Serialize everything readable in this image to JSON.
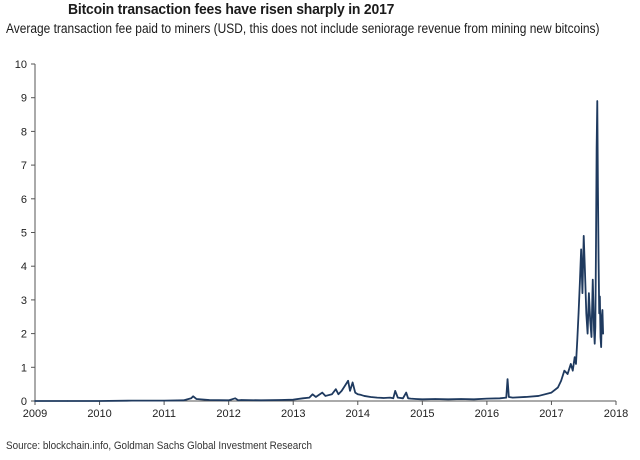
{
  "chart_data": {
    "type": "line",
    "title": "Bitcoin transaction fees have risen sharply in 2017",
    "subtitle": "Average transaction fee paid to miners (USD, this does not include seniorage revenue from mining new bitcoins)",
    "source": "Source: blockchain.info, Goldman Sachs Global Investment Research",
    "xlabel": "",
    "ylabel": "",
    "xlim": [
      2009,
      2018
    ],
    "ylim": [
      0,
      10
    ],
    "x_ticks": [
      "2009",
      "2010",
      "2011",
      "2012",
      "2013",
      "2014",
      "2015",
      "2016",
      "2017",
      "2018"
    ],
    "y_ticks": [
      "0",
      "1",
      "2",
      "3",
      "4",
      "5",
      "6",
      "7",
      "8",
      "9",
      "10"
    ],
    "grid": false,
    "series": [
      {
        "name": "Average transaction fee (USD)",
        "color": "#1f3a5f",
        "x": [
          2009.0,
          2009.5,
          2010.0,
          2010.5,
          2011.0,
          2011.3,
          2011.42,
          2011.45,
          2011.5,
          2011.7,
          2012.0,
          2012.1,
          2012.15,
          2012.2,
          2012.5,
          2012.8,
          2013.0,
          2013.15,
          2013.25,
          2013.3,
          2013.35,
          2013.45,
          2013.5,
          2013.6,
          2013.66,
          2013.7,
          2013.75,
          2013.8,
          2013.85,
          2013.88,
          2013.92,
          2013.96,
          2014.0,
          2014.05,
          2014.1,
          2014.2,
          2014.3,
          2014.4,
          2014.5,
          2014.55,
          2014.58,
          2014.62,
          2014.7,
          2014.75,
          2014.78,
          2014.82,
          2014.9,
          2015.0,
          2015.2,
          2015.4,
          2015.6,
          2015.8,
          2016.0,
          2016.2,
          2016.3,
          2016.32,
          2016.34,
          2016.4,
          2016.6,
          2016.8,
          2017.0,
          2017.1,
          2017.15,
          2017.2,
          2017.25,
          2017.3,
          2017.33,
          2017.36,
          2017.38,
          2017.4,
          2017.42,
          2017.44,
          2017.46,
          2017.48,
          2017.5,
          2017.52,
          2017.54,
          2017.56,
          2017.58,
          2017.6,
          2017.62,
          2017.64,
          2017.66,
          2017.67,
          2017.68,
          2017.69,
          2017.7,
          2017.71,
          2017.72,
          2017.73,
          2017.74,
          2017.75,
          2017.76,
          2017.77,
          2017.78,
          2017.79,
          2017.8
        ],
        "values": [
          0.0,
          0.0,
          0.0,
          0.01,
          0.01,
          0.02,
          0.08,
          0.14,
          0.06,
          0.03,
          0.02,
          0.08,
          0.02,
          0.03,
          0.02,
          0.03,
          0.04,
          0.08,
          0.1,
          0.2,
          0.12,
          0.25,
          0.15,
          0.2,
          0.35,
          0.2,
          0.3,
          0.45,
          0.6,
          0.3,
          0.55,
          0.25,
          0.2,
          0.18,
          0.15,
          0.12,
          0.1,
          0.09,
          0.1,
          0.08,
          0.3,
          0.1,
          0.08,
          0.25,
          0.08,
          0.07,
          0.06,
          0.05,
          0.06,
          0.05,
          0.06,
          0.05,
          0.07,
          0.08,
          0.1,
          0.65,
          0.12,
          0.1,
          0.12,
          0.15,
          0.25,
          0.4,
          0.6,
          0.9,
          0.8,
          1.1,
          0.9,
          1.3,
          1.1,
          1.8,
          2.6,
          3.5,
          4.5,
          3.2,
          4.9,
          3.8,
          2.6,
          2.0,
          3.2,
          2.4,
          1.9,
          3.6,
          2.1,
          1.7,
          2.2,
          4.6,
          7.5,
          8.9,
          6.3,
          4.2,
          2.6,
          3.1,
          1.9,
          1.6,
          2.5,
          2.7,
          2.0
        ]
      }
    ]
  }
}
